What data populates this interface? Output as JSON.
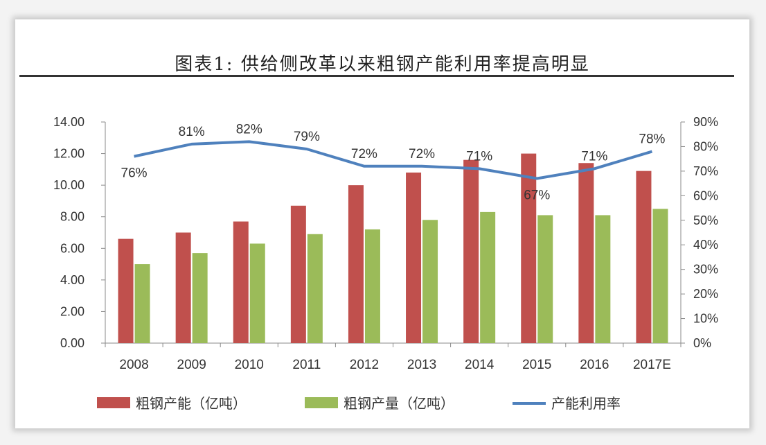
{
  "title": "图表1:   供给侧改革以来粗钢产能利用率提高明显",
  "chart_data": {
    "type": "bar",
    "categories": [
      "2008",
      "2009",
      "2010",
      "2011",
      "2012",
      "2013",
      "2014",
      "2015",
      "2016",
      "2017E"
    ],
    "series": [
      {
        "name": "粗钢产能（亿吨）",
        "type": "bar",
        "axis": "left",
        "color": "#c0504d",
        "values": [
          6.6,
          7.0,
          7.7,
          8.7,
          10.0,
          10.8,
          11.6,
          12.0,
          11.4,
          10.9
        ]
      },
      {
        "name": "粗钢产量（亿吨）",
        "type": "bar",
        "axis": "left",
        "color": "#9bbb59",
        "values": [
          5.0,
          5.7,
          6.3,
          6.9,
          7.2,
          7.8,
          8.3,
          8.1,
          8.1,
          8.5
        ]
      },
      {
        "name": "产能利用率",
        "type": "line",
        "axis": "right",
        "color": "#4f81bd",
        "values": [
          76,
          81,
          82,
          79,
          72,
          72,
          71,
          67,
          71,
          78
        ],
        "labels": [
          "76%",
          "81%",
          "82%",
          "79%",
          "72%",
          "72%",
          "71%",
          "67%",
          "71%",
          "78%"
        ]
      }
    ],
    "ylim_left": [
      0,
      14
    ],
    "yticks_left": [
      "0.00",
      "2.00",
      "4.00",
      "6.00",
      "8.00",
      "10.00",
      "12.00",
      "14.00"
    ],
    "ylim_right": [
      0,
      90
    ],
    "yticks_right": [
      "0%",
      "10%",
      "20%",
      "30%",
      "40%",
      "50%",
      "60%",
      "70%",
      "80%",
      "90%"
    ],
    "grid": false,
    "legend_position": "bottom"
  }
}
